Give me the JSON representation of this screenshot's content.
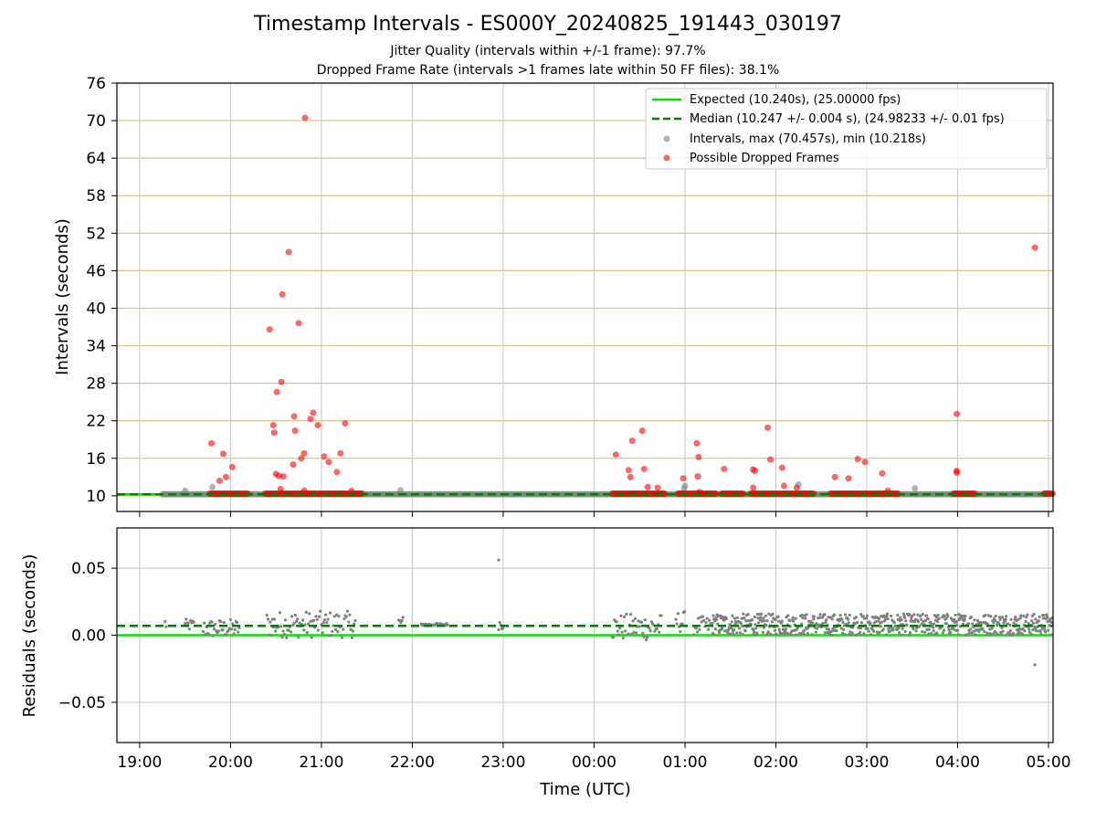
{
  "title": "Timestamp Intervals - ES000Y_20240825_191443_030197",
  "subtitle_1": "Jitter Quality (intervals within +/-1 frame): 97.7%",
  "subtitle_2": "Dropped Frame Rate (intervals >1 frames late within 50 FF files): 38.1%",
  "colors": {
    "expected": "#00e600",
    "median": "#008000",
    "intervals": "#808080",
    "dropped": "#ff0000",
    "hgrid_top": "#d4c48a",
    "grid": "#c8c8c8"
  },
  "chart_data": [
    {
      "type": "scatter",
      "xlabel": "",
      "ylabel": "Intervals (seconds)",
      "ylim": [
        7.5,
        76
      ],
      "y_ticks": [
        "10",
        "16",
        "22",
        "28",
        "34",
        "40",
        "46",
        "52",
        "58",
        "64",
        "70",
        "76"
      ],
      "x_unit": "hours since 19:00 UTC (wrap past 24:00)",
      "xlim": [
        -0.25,
        10.05
      ],
      "grid": "on",
      "legend_position": "top-right",
      "legend": [
        {
          "label": "Expected (10.240s), (25.00000 fps)",
          "kind": "solid-line",
          "color": "#00e600"
        },
        {
          "label": "Median (10.247 +/- 0.004 s), (24.98233 +/- 0.01 fps)",
          "kind": "dashed-line",
          "color": "#008000"
        },
        {
          "label": "Intervals, max (70.457s), min (10.218s)",
          "kind": "marker",
          "color": "#808080"
        },
        {
          "label": "Possible Dropped Frames",
          "kind": "marker",
          "color": "#ff0000"
        }
      ],
      "expected_y": 10.24,
      "median_y": 10.247,
      "interval_points": [
        [
          0.28,
          10.25
        ],
        [
          0.5,
          10.8
        ],
        [
          0.8,
          11.4
        ],
        [
          2.87,
          10.9
        ],
        [
          5.99,
          11.1
        ],
        [
          6.0,
          11.6
        ],
        [
          7.25,
          11.8
        ],
        [
          8.53,
          11.2
        ]
      ],
      "interval_band": [
        [
          0.25,
          10.0
        ]
      ],
      "dropped_bands": [
        [
          0.77,
          1.2
        ],
        [
          1.38,
          2.45
        ],
        [
          5.2,
          5.78
        ],
        [
          5.92,
          6.35
        ],
        [
          6.4,
          6.65
        ],
        [
          6.72,
          7.42
        ],
        [
          7.6,
          8.35
        ],
        [
          8.95,
          9.2
        ],
        [
          9.95,
          10.05
        ]
      ],
      "dropped_points": [
        [
          0.79,
          18.4
        ],
        [
          0.88,
          12.4
        ],
        [
          0.92,
          16.7
        ],
        [
          0.95,
          13.0
        ],
        [
          1.02,
          14.6
        ],
        [
          1.43,
          36.6
        ],
        [
          1.47,
          21.3
        ],
        [
          1.48,
          20.1
        ],
        [
          1.5,
          13.5
        ],
        [
          1.51,
          26.6
        ],
        [
          1.53,
          13.2
        ],
        [
          1.55,
          11.1
        ],
        [
          1.56,
          28.2
        ],
        [
          1.57,
          42.2
        ],
        [
          1.58,
          13.1
        ],
        [
          1.64,
          49.0
        ],
        [
          1.69,
          15.0
        ],
        [
          1.7,
          22.7
        ],
        [
          1.71,
          20.4
        ],
        [
          1.75,
          37.6
        ],
        [
          1.78,
          16.0
        ],
        [
          1.81,
          16.8
        ],
        [
          1.81,
          10.8
        ],
        [
          1.82,
          70.457
        ],
        [
          1.88,
          22.3
        ],
        [
          1.91,
          23.3
        ],
        [
          1.96,
          21.3
        ],
        [
          2.03,
          16.3
        ],
        [
          2.08,
          15.4
        ],
        [
          2.17,
          13.8
        ],
        [
          2.21,
          16.8
        ],
        [
          2.26,
          21.6
        ],
        [
          2.33,
          10.8
        ],
        [
          5.24,
          16.6
        ],
        [
          5.38,
          14.1
        ],
        [
          5.4,
          13.0
        ],
        [
          5.42,
          18.8
        ],
        [
          5.53,
          20.4
        ],
        [
          5.55,
          14.3
        ],
        [
          5.59,
          11.4
        ],
        [
          5.7,
          11.3
        ],
        [
          5.98,
          12.8
        ],
        [
          6.13,
          18.4
        ],
        [
          6.14,
          13.1
        ],
        [
          6.15,
          16.2
        ],
        [
          6.16,
          10.6
        ],
        [
          6.43,
          14.3
        ],
        [
          6.75,
          14.2
        ],
        [
          6.77,
          14.0
        ],
        [
          6.75,
          11.3
        ],
        [
          6.91,
          20.9
        ],
        [
          6.94,
          15.8
        ],
        [
          7.07,
          14.5
        ],
        [
          7.09,
          11.6
        ],
        [
          7.23,
          11.3
        ],
        [
          7.65,
          13.0
        ],
        [
          7.8,
          12.8
        ],
        [
          7.9,
          15.9
        ],
        [
          7.98,
          15.4
        ],
        [
          8.17,
          13.6
        ],
        [
          8.23,
          10.8
        ],
        [
          8.99,
          23.1
        ],
        [
          8.99,
          14.0
        ],
        [
          8.99,
          13.7
        ],
        [
          9.85,
          49.7
        ]
      ]
    },
    {
      "type": "scatter",
      "xlabel": "Time (UTC)",
      "ylabel": "Residuals (seconds)",
      "ylim": [
        -0.08,
        0.08
      ],
      "y_ticks": [
        "0.05",
        "0.00",
        "−0.05"
      ],
      "x_ticks": [
        "19:00",
        "20:00",
        "21:00",
        "22:00",
        "23:00",
        "00:00",
        "01:00",
        "02:00",
        "03:00",
        "04:00",
        "05:00"
      ],
      "grid": "on",
      "expected_y": 0.0,
      "median_y": 0.007,
      "residual_points": [
        [
          3.95,
          0.056
        ],
        [
          9.85,
          -0.022
        ]
      ],
      "residual_bands": [
        [
          0.28,
          0.3,
          0.003,
          0.014
        ],
        [
          0.5,
          0.6,
          0.003,
          0.012
        ],
        [
          0.7,
          1.1,
          -0.002,
          0.012
        ],
        [
          1.4,
          2.38,
          -0.002,
          0.018
        ],
        [
          2.85,
          2.9,
          0.005,
          0.014
        ],
        [
          3.1,
          3.4,
          0.007,
          0.009
        ],
        [
          3.95,
          4.0,
          0.004,
          0.013
        ],
        [
          5.2,
          5.75,
          -0.004,
          0.016
        ],
        [
          5.9,
          6.0,
          0.002,
          0.018
        ],
        [
          6.1,
          6.3,
          0.0,
          0.014
        ],
        [
          6.3,
          10.05,
          0.0,
          0.016
        ]
      ]
    }
  ]
}
